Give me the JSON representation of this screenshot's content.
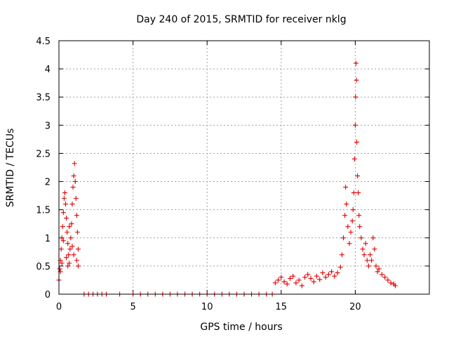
{
  "chart_data": {
    "type": "scatter",
    "title": "Day 240 of 2015, SRMTID for receiver nklg",
    "xlabel": "GPS time / hours",
    "ylabel": "SRMTID / TECUs",
    "xlim": [
      0,
      25
    ],
    "ylim": [
      0,
      4.5
    ],
    "xticks": [
      0,
      5,
      10,
      15,
      20
    ],
    "xtick_labels": [
      "0",
      "5",
      "10",
      "15",
      "20"
    ],
    "yticks": [
      0,
      0.5,
      1,
      1.5,
      2,
      2.5,
      3,
      3.5,
      4,
      4.5
    ],
    "ytick_labels": [
      "0",
      "0.5",
      "1",
      "1.5",
      "2",
      "2.5",
      "3",
      "3.5",
      "4",
      "4.5"
    ],
    "grid": true,
    "marker": "+",
    "color": "#e00000",
    "series": [
      {
        "name": "SRMTID",
        "points": [
          [
            0.0,
            0.25
          ],
          [
            0.05,
            0.45
          ],
          [
            0.1,
            0.6
          ],
          [
            0.15,
            0.8
          ],
          [
            0.2,
            1.0
          ],
          [
            0.25,
            1.2
          ],
          [
            0.3,
            1.45
          ],
          [
            0.35,
            1.7
          ],
          [
            0.4,
            1.8
          ],
          [
            0.45,
            1.6
          ],
          [
            0.5,
            1.35
          ],
          [
            0.55,
            1.1
          ],
          [
            0.6,
            0.9
          ],
          [
            0.65,
            0.7
          ],
          [
            0.7,
            0.55
          ],
          [
            0.75,
            0.8
          ],
          [
            0.8,
            1.0
          ],
          [
            0.85,
            1.25
          ],
          [
            0.9,
            1.6
          ],
          [
            0.95,
            1.9
          ],
          [
            1.0,
            2.1
          ],
          [
            1.05,
            2.32
          ],
          [
            1.1,
            2.0
          ],
          [
            1.15,
            1.7
          ],
          [
            1.2,
            1.4
          ],
          [
            1.25,
            1.1
          ],
          [
            1.3,
            0.8
          ],
          [
            1.0,
            0.7
          ],
          [
            0.6,
            0.5
          ],
          [
            0.3,
            0.95
          ],
          [
            0.1,
            0.4
          ],
          [
            0.2,
            0.55
          ],
          [
            0.5,
            0.65
          ],
          [
            0.7,
            1.2
          ],
          [
            0.9,
            0.85
          ],
          [
            1.2,
            0.6
          ],
          [
            1.3,
            0.5
          ],
          [
            1.7,
            0
          ],
          [
            2.0,
            0
          ],
          [
            2.3,
            0
          ],
          [
            2.6,
            0
          ],
          [
            2.9,
            0
          ],
          [
            3.2,
            0
          ],
          [
            4.1,
            0
          ],
          [
            5.0,
            0
          ],
          [
            5.5,
            0
          ],
          [
            6.0,
            0
          ],
          [
            6.5,
            0
          ],
          [
            7.0,
            0
          ],
          [
            7.5,
            0
          ],
          [
            8.0,
            0
          ],
          [
            8.5,
            0
          ],
          [
            9.0,
            0
          ],
          [
            9.5,
            0
          ],
          [
            10.0,
            0
          ],
          [
            10.5,
            0
          ],
          [
            11.0,
            0
          ],
          [
            11.5,
            0
          ],
          [
            12.0,
            0
          ],
          [
            12.5,
            0
          ],
          [
            13.0,
            0
          ],
          [
            13.5,
            0
          ],
          [
            14.0,
            0
          ],
          [
            14.4,
            0
          ],
          [
            14.6,
            0.2
          ],
          [
            14.8,
            0.25
          ],
          [
            15.0,
            0.3
          ],
          [
            15.2,
            0.22
          ],
          [
            15.4,
            0.18
          ],
          [
            15.6,
            0.28
          ],
          [
            15.8,
            0.32
          ],
          [
            16.0,
            0.2
          ],
          [
            16.2,
            0.25
          ],
          [
            16.4,
            0.15
          ],
          [
            16.6,
            0.3
          ],
          [
            16.8,
            0.35
          ],
          [
            17.0,
            0.28
          ],
          [
            17.2,
            0.22
          ],
          [
            17.4,
            0.32
          ],
          [
            17.6,
            0.26
          ],
          [
            17.8,
            0.38
          ],
          [
            18.0,
            0.3
          ],
          [
            18.2,
            0.35
          ],
          [
            18.4,
            0.4
          ],
          [
            18.6,
            0.32
          ],
          [
            18.8,
            0.38
          ],
          [
            19.0,
            0.48
          ],
          [
            19.1,
            0.7
          ],
          [
            19.2,
            1.0
          ],
          [
            19.3,
            1.4
          ],
          [
            19.35,
            1.9
          ],
          [
            19.4,
            1.6
          ],
          [
            19.5,
            1.2
          ],
          [
            19.6,
            0.9
          ],
          [
            19.7,
            1.1
          ],
          [
            19.8,
            1.3
          ],
          [
            19.85,
            1.5
          ],
          [
            19.9,
            1.8
          ],
          [
            19.95,
            2.4
          ],
          [
            20.0,
            3.0
          ],
          [
            20.02,
            3.5
          ],
          [
            20.05,
            4.1
          ],
          [
            20.08,
            3.8
          ],
          [
            20.1,
            2.7
          ],
          [
            20.15,
            2.1
          ],
          [
            20.2,
            1.8
          ],
          [
            20.25,
            1.4
          ],
          [
            20.3,
            1.2
          ],
          [
            20.4,
            1.0
          ],
          [
            20.5,
            0.8
          ],
          [
            20.6,
            0.7
          ],
          [
            20.7,
            0.9
          ],
          [
            20.8,
            0.6
          ],
          [
            20.9,
            0.5
          ],
          [
            21.0,
            0.7
          ],
          [
            21.1,
            0.6
          ],
          [
            21.2,
            1.0
          ],
          [
            21.3,
            0.8
          ],
          [
            21.4,
            0.5
          ],
          [
            21.5,
            0.4
          ],
          [
            21.6,
            0.45
          ],
          [
            21.8,
            0.35
          ],
          [
            22.0,
            0.3
          ],
          [
            22.2,
            0.25
          ],
          [
            22.4,
            0.2
          ],
          [
            22.6,
            0.18
          ],
          [
            22.7,
            0.15
          ]
        ]
      }
    ]
  }
}
